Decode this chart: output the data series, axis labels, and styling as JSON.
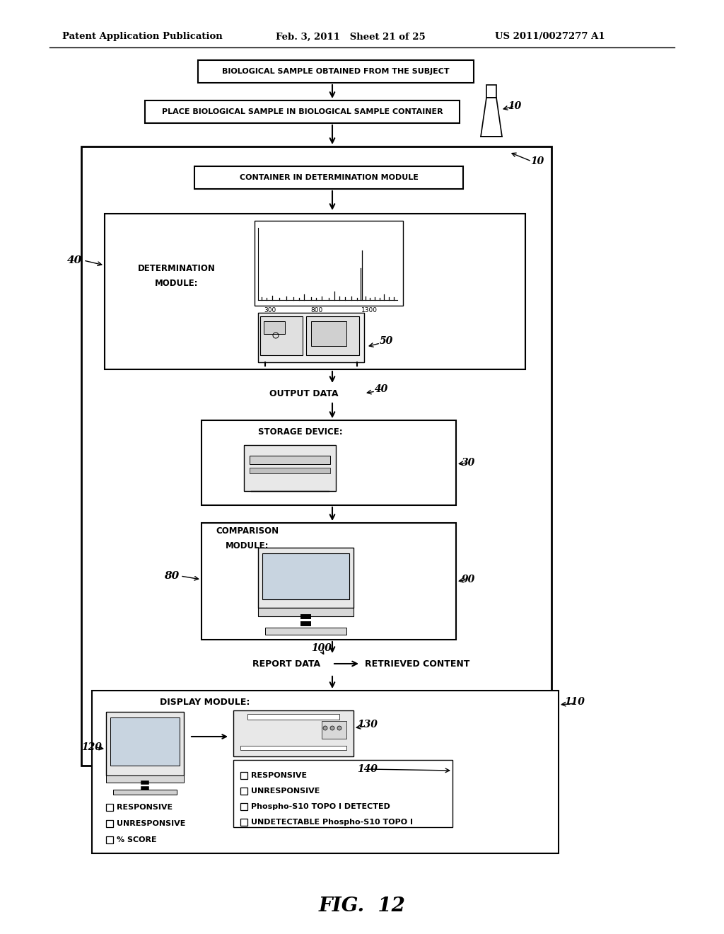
{
  "bg_color": "#ffffff",
  "header_left": "Patent Application Publication",
  "header_mid": "Feb. 3, 2011   Sheet 21 of 25",
  "header_right": "US 2011/0027277 A1",
  "fig_label": "FIG.  12",
  "box1_text": "BIOLOGICAL SAMPLE OBTAINED FROM THE SUBJECT",
  "box2_text": "PLACE BIOLOGICAL SAMPLE IN BIOLOGICAL SAMPLE CONTAINER",
  "box3_text": "CONTAINER IN DETERMINATION MODULE",
  "det_module_label": "DETERMINATION\nMODULE:",
  "det_module_ref": "40",
  "machine_ref": "50",
  "output_text": "OUTPUT DATA",
  "output_ref": "40",
  "storage_label": "STORAGE DEVICE:",
  "storage_ref": "30",
  "comparison_label": "COMPARISON\nMODULE:",
  "comparison_ref": "80",
  "computer_ref": "90",
  "report_text": "REPORT DATA",
  "retrieved_text": "RETRIEVED CONTENT",
  "report_ref": "100",
  "display_label": "DISPLAY MODULE:",
  "display_ref": "110",
  "monitor_ref": "120",
  "printer_ref": "130",
  "printout_ref": "140",
  "left_list": [
    "RESPONSIVE",
    "UNRESPONSIVE",
    "% SCORE"
  ],
  "right_list": [
    "RESPONSIVE",
    "UNRESPONSIVE",
    "Phospho-S10 TOPO I DETECTED",
    "UNDETECTABLE Phospho-S10 TOPO I"
  ],
  "flask_ref": "10",
  "outer_box_ref": "10"
}
